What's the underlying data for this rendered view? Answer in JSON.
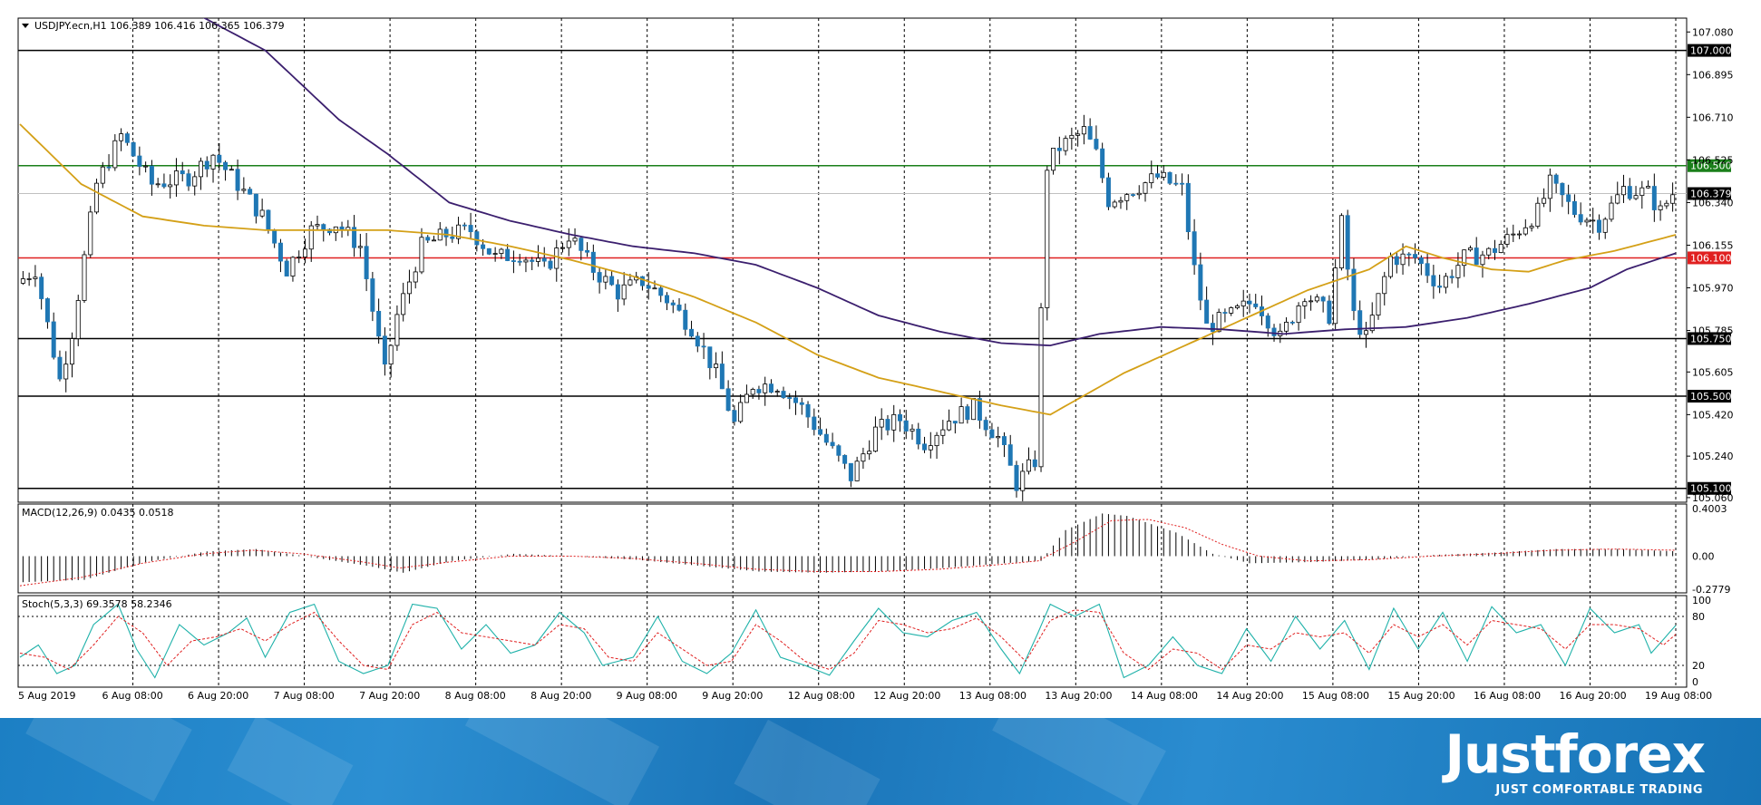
{
  "header": {
    "symbol_line": "USDJPY.ecn,H1  106.389 106.416 106.365 106.379"
  },
  "indicators": {
    "macd_label": "MACD(12,26,9) 0.0435 0.0518",
    "stoch_label": "Stoch(5,3,3) 69.3578 58.2346"
  },
  "colors": {
    "bull_candle": "#ffffff",
    "bear_candle": "#1f77b4",
    "ma_fast": "#d4a017",
    "ma_slow": "#3b1f6e",
    "resistance_green": "#1a7f1a",
    "support_red": "#e02020",
    "level_black": "#000000",
    "brand_blue": "#1c7fc4"
  },
  "chart_data": {
    "type": "candlestick",
    "symbol": "USDJPY.ecn",
    "timeframe": "H1",
    "price_axis_ticks": [
      "107.080",
      "106.895",
      "106.710",
      "106.525",
      "106.340",
      "106.155",
      "105.970",
      "105.785",
      "105.605",
      "105.420",
      "105.240",
      "105.060"
    ],
    "ylim": [
      105.04,
      107.14
    ],
    "time_labels": [
      "5 Aug 2019",
      "6 Aug 08:00",
      "6 Aug 20:00",
      "7 Aug 08:00",
      "7 Aug 20:00",
      "8 Aug 08:00",
      "8 Aug 20:00",
      "9 Aug 08:00",
      "9 Aug 20:00",
      "12 Aug 08:00",
      "12 Aug 20:00",
      "13 Aug 08:00",
      "13 Aug 20:00",
      "14 Aug 08:00",
      "14 Aug 20:00",
      "15 Aug 08:00",
      "15 Aug 20:00",
      "16 Aug 08:00",
      "16 Aug 20:00",
      "19 Aug 08:00"
    ],
    "horizontal_levels": [
      {
        "price": 107.0,
        "label": "107.000",
        "style": "black"
      },
      {
        "price": 106.5,
        "label": "106.500",
        "style": "green"
      },
      {
        "price": 106.379,
        "label": "106.379",
        "style": "current"
      },
      {
        "price": 106.1,
        "label": "106.100",
        "style": "red"
      },
      {
        "price": 105.75,
        "label": "105.750",
        "style": "black"
      },
      {
        "price": 105.5,
        "label": "105.500",
        "style": "black"
      },
      {
        "price": 105.1,
        "label": "105.100",
        "style": "black"
      }
    ],
    "price_path": [
      [
        0,
        105.99
      ],
      [
        3,
        106.05
      ],
      [
        7,
        105.57
      ],
      [
        9,
        105.78
      ],
      [
        13,
        106.42
      ],
      [
        17,
        106.63
      ],
      [
        22,
        106.42
      ],
      [
        28,
        106.45
      ],
      [
        32,
        106.55
      ],
      [
        36,
        106.42
      ],
      [
        40,
        106.28
      ],
      [
        44,
        106.05
      ],
      [
        48,
        106.22
      ],
      [
        52,
        106.25
      ],
      [
        56,
        106.15
      ],
      [
        60,
        105.6
      ],
      [
        62,
        105.85
      ],
      [
        66,
        106.15
      ],
      [
        70,
        106.2
      ],
      [
        74,
        106.22
      ],
      [
        78,
        106.1
      ],
      [
        82,
        106.12
      ],
      [
        86,
        106.05
      ],
      [
        90,
        106.2
      ],
      [
        94,
        106.05
      ],
      [
        98,
        105.95
      ],
      [
        102,
        106.0
      ],
      [
        106,
        105.92
      ],
      [
        110,
        105.8
      ],
      [
        114,
        105.6
      ],
      [
        117,
        105.38
      ],
      [
        120,
        105.55
      ],
      [
        124,
        105.55
      ],
      [
        128,
        105.45
      ],
      [
        132,
        105.3
      ],
      [
        136,
        105.15
      ],
      [
        140,
        105.35
      ],
      [
        144,
        105.4
      ],
      [
        148,
        105.3
      ],
      [
        152,
        105.4
      ],
      [
        156,
        105.45
      ],
      [
        160,
        105.32
      ],
      [
        163,
        105.12
      ],
      [
        166,
        105.22
      ],
      [
        168,
        106.5
      ],
      [
        170,
        106.58
      ],
      [
        174,
        106.65
      ],
      [
        176,
        106.55
      ],
      [
        178,
        106.35
      ],
      [
        182,
        106.4
      ],
      [
        186,
        106.45
      ],
      [
        190,
        106.4
      ],
      [
        192,
        106.05
      ],
      [
        194,
        105.8
      ],
      [
        198,
        105.85
      ],
      [
        202,
        105.92
      ],
      [
        206,
        105.75
      ],
      [
        210,
        105.95
      ],
      [
        214,
        105.85
      ],
      [
        216,
        106.25
      ],
      [
        218,
        105.85
      ],
      [
        220,
        105.75
      ],
      [
        224,
        106.1
      ],
      [
        228,
        106.1
      ],
      [
        232,
        105.98
      ],
      [
        236,
        106.1
      ],
      [
        240,
        106.12
      ],
      [
        244,
        106.2
      ],
      [
        248,
        106.3
      ],
      [
        250,
        106.42
      ],
      [
        254,
        106.3
      ],
      [
        258,
        106.25
      ],
      [
        262,
        106.4
      ],
      [
        266,
        106.38
      ],
      [
        268,
        106.3
      ],
      [
        270,
        106.38
      ]
    ],
    "ma_fast_path": [
      [
        0,
        106.68
      ],
      [
        10,
        106.42
      ],
      [
        20,
        106.28
      ],
      [
        30,
        106.24
      ],
      [
        40,
        106.22
      ],
      [
        50,
        106.22
      ],
      [
        60,
        106.22
      ],
      [
        70,
        106.2
      ],
      [
        80,
        106.15
      ],
      [
        90,
        106.09
      ],
      [
        100,
        106.02
      ],
      [
        110,
        105.93
      ],
      [
        120,
        105.82
      ],
      [
        130,
        105.68
      ],
      [
        140,
        105.58
      ],
      [
        150,
        105.52
      ],
      [
        160,
        105.46
      ],
      [
        168,
        105.42
      ],
      [
        180,
        105.6
      ],
      [
        190,
        105.72
      ],
      [
        200,
        105.84
      ],
      [
        210,
        105.96
      ],
      [
        220,
        106.05
      ],
      [
        226,
        106.15
      ],
      [
        232,
        106.1
      ],
      [
        240,
        106.05
      ],
      [
        246,
        106.04
      ],
      [
        252,
        106.09
      ],
      [
        260,
        106.13
      ],
      [
        270,
        106.2
      ]
    ],
    "ma_slow_path": [
      [
        28,
        107.17
      ],
      [
        40,
        107.0
      ],
      [
        52,
        106.7
      ],
      [
        60,
        106.55
      ],
      [
        70,
        106.34
      ],
      [
        80,
        106.26
      ],
      [
        90,
        106.2
      ],
      [
        100,
        106.15
      ],
      [
        110,
        106.12
      ],
      [
        120,
        106.07
      ],
      [
        130,
        105.97
      ],
      [
        140,
        105.85
      ],
      [
        150,
        105.78
      ],
      [
        160,
        105.73
      ],
      [
        168,
        105.72
      ],
      [
        176,
        105.77
      ],
      [
        186,
        105.8
      ],
      [
        196,
        105.79
      ],
      [
        206,
        105.77
      ],
      [
        216,
        105.79
      ],
      [
        226,
        105.8
      ],
      [
        236,
        105.84
      ],
      [
        246,
        105.9
      ],
      [
        256,
        105.97
      ],
      [
        262,
        106.05
      ],
      [
        270,
        106.12
      ]
    ],
    "macd": {
      "label": "MACD(12,26,9) 0.0435 0.0518",
      "ticks": [
        "0.4003",
        "0.00",
        "-0.2779"
      ],
      "ylim": [
        -0.31,
        0.44
      ],
      "histogram_path": [
        [
          0,
          -0.22
        ],
        [
          10,
          -0.2
        ],
        [
          20,
          -0.05
        ],
        [
          30,
          0.04
        ],
        [
          38,
          0.06
        ],
        [
          46,
          0.0
        ],
        [
          56,
          -0.08
        ],
        [
          62,
          -0.14
        ],
        [
          70,
          -0.04
        ],
        [
          80,
          0.02
        ],
        [
          90,
          0.0
        ],
        [
          100,
          -0.03
        ],
        [
          110,
          -0.08
        ],
        [
          120,
          -0.13
        ],
        [
          130,
          -0.14
        ],
        [
          140,
          -0.13
        ],
        [
          150,
          -0.1
        ],
        [
          160,
          -0.06
        ],
        [
          166,
          -0.04
        ],
        [
          170,
          0.22
        ],
        [
          176,
          0.36
        ],
        [
          180,
          0.34
        ],
        [
          188,
          0.2
        ],
        [
          194,
          0.02
        ],
        [
          200,
          -0.06
        ],
        [
          210,
          -0.05
        ],
        [
          220,
          -0.03
        ],
        [
          230,
          0.01
        ],
        [
          240,
          0.03
        ],
        [
          250,
          0.06
        ],
        [
          260,
          0.06
        ],
        [
          270,
          0.04
        ]
      ],
      "signal_path": [
        [
          0,
          -0.25
        ],
        [
          10,
          -0.18
        ],
        [
          20,
          -0.06
        ],
        [
          30,
          0.02
        ],
        [
          38,
          0.05
        ],
        [
          46,
          0.02
        ],
        [
          56,
          -0.05
        ],
        [
          62,
          -0.1
        ],
        [
          70,
          -0.05
        ],
        [
          80,
          0.0
        ],
        [
          90,
          0.0
        ],
        [
          100,
          -0.02
        ],
        [
          110,
          -0.06
        ],
        [
          120,
          -0.11
        ],
        [
          130,
          -0.13
        ],
        [
          140,
          -0.13
        ],
        [
          150,
          -0.11
        ],
        [
          160,
          -0.07
        ],
        [
          166,
          -0.04
        ],
        [
          172,
          0.12
        ],
        [
          178,
          0.3
        ],
        [
          184,
          0.31
        ],
        [
          190,
          0.24
        ],
        [
          196,
          0.1
        ],
        [
          202,
          0.0
        ],
        [
          210,
          -0.04
        ],
        [
          220,
          -0.03
        ],
        [
          230,
          0.0
        ],
        [
          240,
          0.02
        ],
        [
          250,
          0.05
        ],
        [
          260,
          0.06
        ],
        [
          270,
          0.05
        ]
      ]
    },
    "stochastic": {
      "label": "Stoch(5,3,3) 69.3578 58.2346",
      "ticks": [
        "100",
        "80",
        "20",
        "0"
      ],
      "levels": [
        80,
        20
      ],
      "ylim": [
        0,
        100
      ],
      "k_path": [
        [
          0,
          30
        ],
        [
          3,
          45
        ],
        [
          6,
          10
        ],
        [
          9,
          20
        ],
        [
          12,
          70
        ],
        [
          16,
          95
        ],
        [
          19,
          40
        ],
        [
          22,
          5
        ],
        [
          26,
          70
        ],
        [
          30,
          45
        ],
        [
          34,
          60
        ],
        [
          37,
          78
        ],
        [
          40,
          30
        ],
        [
          44,
          85
        ],
        [
          48,
          95
        ],
        [
          52,
          25
        ],
        [
          56,
          10
        ],
        [
          60,
          20
        ],
        [
          64,
          95
        ],
        [
          68,
          90
        ],
        [
          72,
          40
        ],
        [
          76,
          70
        ],
        [
          80,
          35
        ],
        [
          84,
          45
        ],
        [
          88,
          85
        ],
        [
          92,
          60
        ],
        [
          95,
          20
        ],
        [
          100,
          30
        ],
        [
          104,
          80
        ],
        [
          108,
          25
        ],
        [
          112,
          10
        ],
        [
          116,
          35
        ],
        [
          120,
          88
        ],
        [
          124,
          30
        ],
        [
          128,
          20
        ],
        [
          132,
          8
        ],
        [
          136,
          50
        ],
        [
          140,
          90
        ],
        [
          144,
          60
        ],
        [
          148,
          55
        ],
        [
          152,
          75
        ],
        [
          156,
          85
        ],
        [
          160,
          40
        ],
        [
          163,
          10
        ],
        [
          166,
          60
        ],
        [
          168,
          95
        ],
        [
          172,
          80
        ],
        [
          176,
          95
        ],
        [
          180,
          5
        ],
        [
          184,
          20
        ],
        [
          188,
          55
        ],
        [
          192,
          20
        ],
        [
          196,
          10
        ],
        [
          200,
          65
        ],
        [
          204,
          25
        ],
        [
          208,
          80
        ],
        [
          212,
          40
        ],
        [
          216,
          75
        ],
        [
          220,
          15
        ],
        [
          224,
          90
        ],
        [
          228,
          40
        ],
        [
          232,
          85
        ],
        [
          236,
          25
        ],
        [
          240,
          92
        ],
        [
          244,
          60
        ],
        [
          248,
          70
        ],
        [
          252,
          20
        ],
        [
          256,
          90
        ],
        [
          260,
          60
        ],
        [
          264,
          70
        ],
        [
          266,
          35
        ],
        [
          270,
          69
        ]
      ],
      "d_path": [
        [
          0,
          35
        ],
        [
          4,
          30
        ],
        [
          8,
          15
        ],
        [
          12,
          45
        ],
        [
          16,
          80
        ],
        [
          20,
          60
        ],
        [
          24,
          20
        ],
        [
          28,
          50
        ],
        [
          32,
          55
        ],
        [
          36,
          65
        ],
        [
          40,
          50
        ],
        [
          44,
          70
        ],
        [
          48,
          85
        ],
        [
          52,
          50
        ],
        [
          56,
          20
        ],
        [
          60,
          15
        ],
        [
          64,
          70
        ],
        [
          68,
          85
        ],
        [
          72,
          60
        ],
        [
          76,
          55
        ],
        [
          80,
          50
        ],
        [
          84,
          45
        ],
        [
          88,
          70
        ],
        [
          92,
          65
        ],
        [
          96,
          30
        ],
        [
          100,
          25
        ],
        [
          104,
          60
        ],
        [
          108,
          40
        ],
        [
          112,
          20
        ],
        [
          116,
          25
        ],
        [
          120,
          70
        ],
        [
          124,
          50
        ],
        [
          128,
          25
        ],
        [
          132,
          15
        ],
        [
          136,
          35
        ],
        [
          140,
          75
        ],
        [
          144,
          70
        ],
        [
          148,
          60
        ],
        [
          152,
          65
        ],
        [
          156,
          78
        ],
        [
          160,
          55
        ],
        [
          164,
          25
        ],
        [
          168,
          75
        ],
        [
          172,
          88
        ],
        [
          176,
          85
        ],
        [
          180,
          35
        ],
        [
          184,
          15
        ],
        [
          188,
          40
        ],
        [
          192,
          35
        ],
        [
          196,
          15
        ],
        [
          200,
          45
        ],
        [
          204,
          40
        ],
        [
          208,
          60
        ],
        [
          212,
          55
        ],
        [
          216,
          60
        ],
        [
          220,
          35
        ],
        [
          224,
          70
        ],
        [
          228,
          55
        ],
        [
          232,
          70
        ],
        [
          236,
          45
        ],
        [
          240,
          75
        ],
        [
          244,
          70
        ],
        [
          248,
          65
        ],
        [
          252,
          40
        ],
        [
          256,
          70
        ],
        [
          260,
          70
        ],
        [
          264,
          65
        ],
        [
          268,
          45
        ],
        [
          270,
          58
        ]
      ]
    }
  },
  "branding": {
    "logo": "Justforex",
    "tagline": "JUST COMFORTABLE TRADING"
  }
}
